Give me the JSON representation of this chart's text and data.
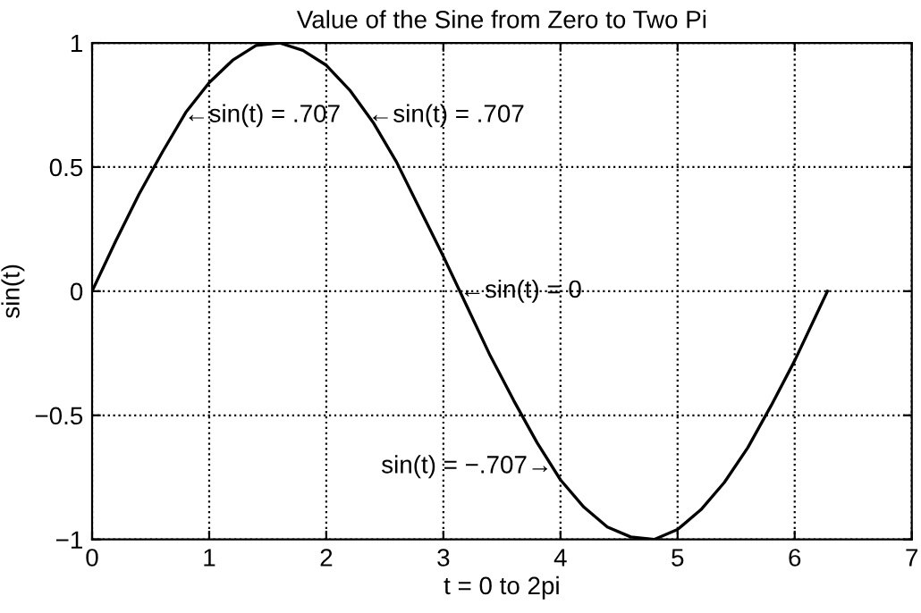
{
  "chart_data": {
    "type": "line",
    "title": "Value of the Sine from Zero to Two Pi",
    "xlabel": "t = 0 to 2pi",
    "ylabel": "sin(t)",
    "x": [
      0,
      0.2,
      0.4,
      0.6,
      0.8,
      1.0,
      1.2,
      1.4,
      1.6,
      1.8,
      2.0,
      2.2,
      2.4,
      2.6,
      2.8,
      3.0,
      3.2,
      3.4,
      3.6,
      3.8,
      4.0,
      4.2,
      4.4,
      4.6,
      4.8,
      5.0,
      5.2,
      5.4,
      5.6,
      5.8,
      6.0,
      6.2,
      6.28
    ],
    "series": [
      {
        "color": "#000000",
        "values": [
          0,
          0.2,
          0.39,
          0.56,
          0.72,
          0.84,
          0.93,
          0.99,
          1.0,
          0.97,
          0.91,
          0.81,
          0.68,
          0.52,
          0.33,
          0.14,
          -0.06,
          -0.26,
          -0.44,
          -0.61,
          -0.76,
          -0.87,
          -0.95,
          -0.99,
          -1.0,
          -0.96,
          -0.88,
          -0.77,
          -0.63,
          -0.46,
          -0.28,
          -0.08,
          0.0
        ]
      }
    ],
    "xlim": [
      0,
      7
    ],
    "xticks": [
      0,
      1,
      2,
      3,
      4,
      5,
      6,
      7
    ],
    "ylim": [
      -1,
      1
    ],
    "yticks": [
      {
        "value": -1,
        "label": "−1"
      },
      {
        "value": -0.5,
        "label": "−0.5"
      },
      0,
      0.5,
      1
    ],
    "annotations": [
      {
        "text": "←sin(t) = .707",
        "x": 0.785,
        "y": 0.707
      },
      {
        "text": "←sin(t) = .707",
        "x": 2.356,
        "y": 0.707
      },
      {
        "text": "←sin(t) = 0",
        "x": 3.14,
        "y": 0
      },
      {
        "text": "sin(t) = −.707→",
        "x": 3.93,
        "y": -0.707
      }
    ],
    "grid": true,
    "marker": "none",
    "line_style": "solid"
  }
}
